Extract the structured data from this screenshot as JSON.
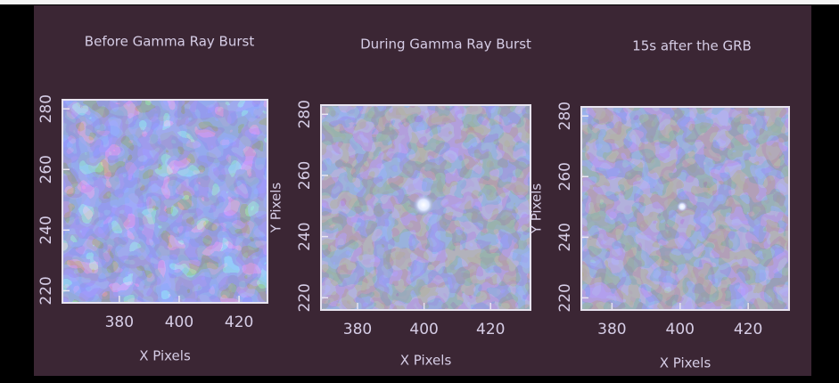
{
  "panels": [
    {
      "title": "Before Gamma Ray Burst",
      "x_label": "X Pixels",
      "xticks": [
        380,
        400,
        420
      ],
      "yticks": [
        220,
        240,
        260,
        280
      ]
    },
    {
      "title": "During Gamma Ray Burst",
      "x_label": "X Pixels",
      "y_label": "Y Pixels",
      "xticks": [
        380,
        400,
        420
      ],
      "yticks": [
        220,
        240,
        260,
        280
      ]
    },
    {
      "title": "15s after the GRB",
      "x_label": "X Pixels",
      "y_label": "Y Pixels",
      "xticks": [
        380,
        400,
        420
      ],
      "yticks": [
        220,
        240,
        260,
        280
      ]
    }
  ]
}
